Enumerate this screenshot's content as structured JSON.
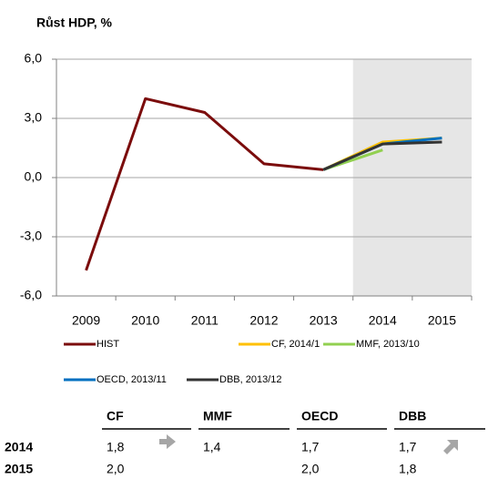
{
  "chart_data": {
    "type": "line",
    "title": "Růst HDP, %",
    "categories": [
      "2009",
      "2010",
      "2011",
      "2012",
      "2013",
      "2014",
      "2015"
    ],
    "series": [
      {
        "name": "HIST",
        "color": "#7b0c0c",
        "values": [
          -4.7,
          4.0,
          3.3,
          0.7,
          0.4,
          null,
          null
        ]
      },
      {
        "name": "CF, 2014/1",
        "color": "#ffc000",
        "values": [
          null,
          null,
          null,
          null,
          0.4,
          1.8,
          2.0
        ]
      },
      {
        "name": "MMF, 2013/10",
        "color": "#92d050",
        "values": [
          null,
          null,
          null,
          null,
          0.4,
          1.4,
          null
        ]
      },
      {
        "name": "OECD, 2013/11",
        "color": "#0070c0",
        "values": [
          null,
          null,
          null,
          null,
          0.4,
          1.7,
          2.0
        ]
      },
      {
        "name": "DBB, 2013/12",
        "color": "#333333",
        "values": [
          null,
          null,
          null,
          null,
          0.4,
          1.7,
          1.8
        ]
      }
    ],
    "ylim": [
      -6,
      6
    ],
    "yticks": [
      {
        "value": -6,
        "label": "-6,0"
      },
      {
        "value": -3,
        "label": "-3,0"
      },
      {
        "value": 0,
        "label": "0,0"
      },
      {
        "value": 3,
        "label": "3,0"
      },
      {
        "value": 6,
        "label": "6,0"
      }
    ],
    "grid": true,
    "shade_from_index": 5,
    "shade_color": "#e6e6e6"
  },
  "table": {
    "headers": [
      "CF",
      "MMF",
      "OECD",
      "DBB"
    ],
    "rows": [
      {
        "label": "2014",
        "values": [
          "1,8",
          "1,4",
          "1,7",
          "1,7"
        ]
      },
      {
        "label": "2015",
        "values": [
          "2,0",
          null,
          "2,0",
          "1,8"
        ]
      }
    ]
  }
}
